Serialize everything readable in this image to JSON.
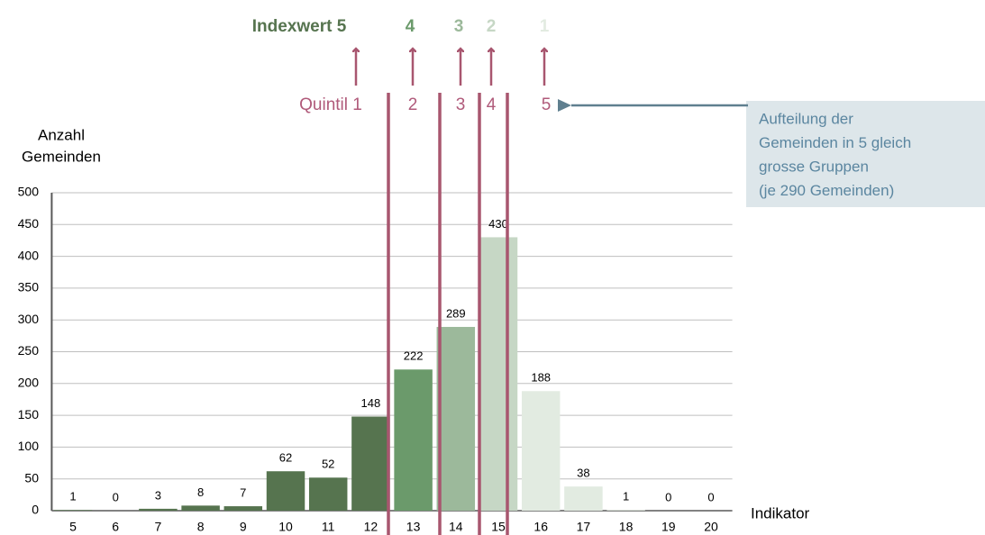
{
  "chart_data": {
    "type": "bar",
    "categories": [
      "5",
      "6",
      "7",
      "8",
      "9",
      "10",
      "11",
      "12",
      "13",
      "14",
      "15",
      "16",
      "17",
      "18",
      "19",
      "20"
    ],
    "values": [
      1,
      0,
      3,
      8,
      7,
      62,
      52,
      148,
      222,
      289,
      430,
      188,
      38,
      1,
      0,
      0
    ],
    "colors": [
      "#56744f",
      "#56744f",
      "#56744f",
      "#56744f",
      "#56744f",
      "#56744f",
      "#56744f",
      "#56744f",
      "#6b9a6b",
      "#9cb99b",
      "#c6d7c5",
      "#e2ebe1",
      "#e2ebe1",
      "#e2ebe1",
      "#e2ebe1",
      "#e2ebe1"
    ],
    "ylim": [
      0,
      500
    ],
    "yticks": [
      0,
      50,
      100,
      150,
      200,
      250,
      300,
      350,
      400,
      450,
      500
    ],
    "grid": true,
    "y_label": [
      "Anzahl",
      "Gemeinden"
    ],
    "x_label": "Indikator",
    "index_labels": [
      "Indexwert 5",
      "4",
      "3",
      "2",
      "1"
    ],
    "index_colors": [
      "#56744f",
      "#6b9a6b",
      "#9cb99b",
      "#c6d7c5",
      "#e2ebe1"
    ],
    "quintile_labels": [
      "Quintil 1",
      "2",
      "3",
      "4",
      "5"
    ],
    "note": [
      "Aufteilung der",
      "Gemeinden in 5 gleich",
      "grosse Gruppen",
      "(je 290 Gemeinden)"
    ]
  }
}
